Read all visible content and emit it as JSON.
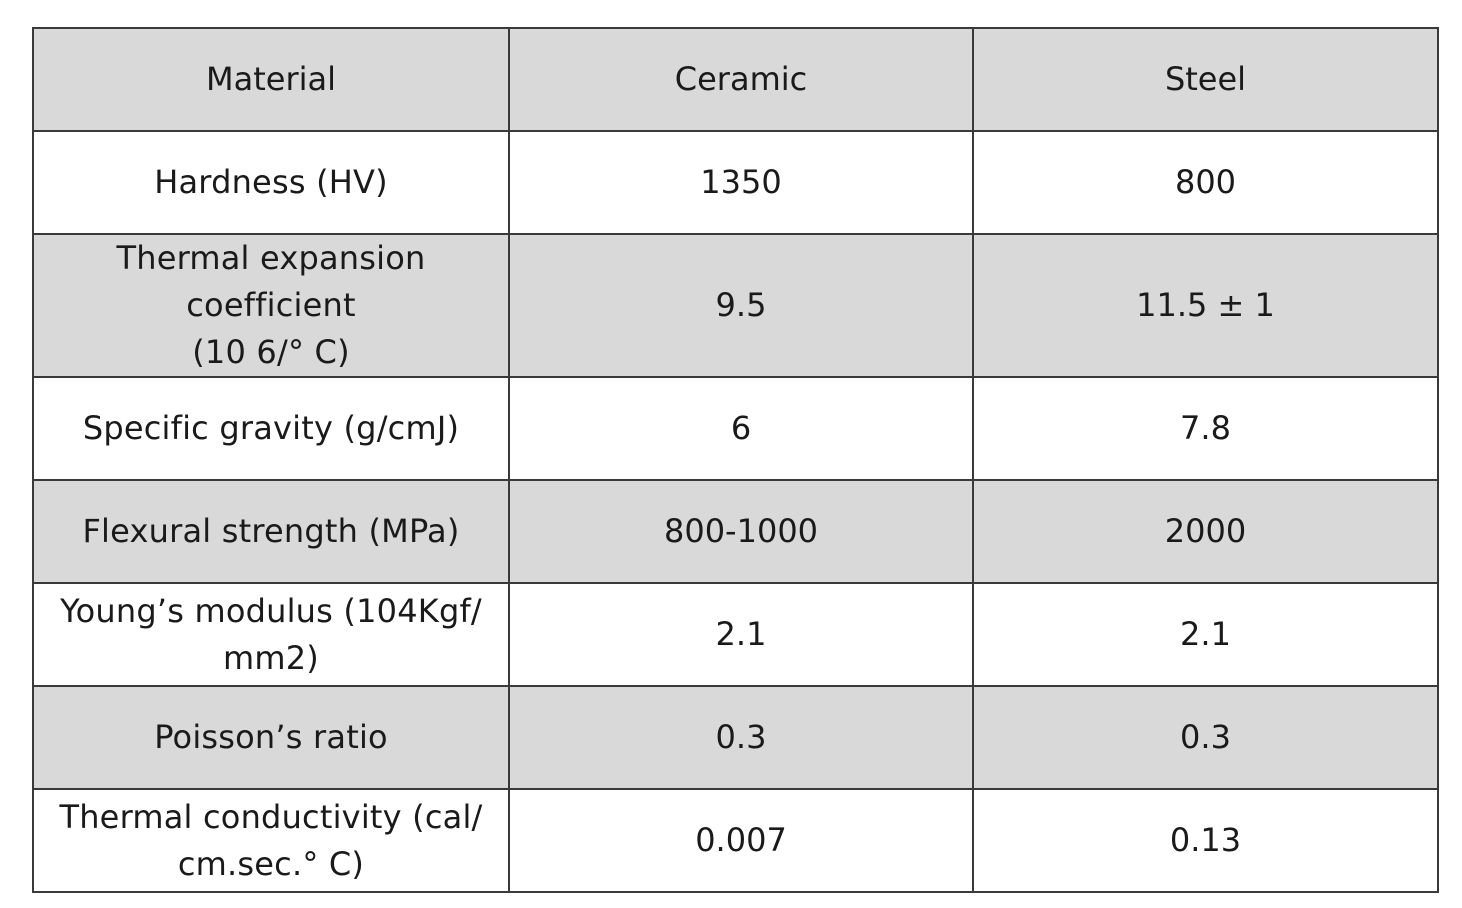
{
  "table": {
    "headers": [
      "Material",
      "Ceramic",
      "Steel"
    ],
    "rows": [
      {
        "property": [
          "Hardness (HV)"
        ],
        "ceramic": "1350",
        "steel": "800"
      },
      {
        "property": [
          "Thermal expansion coefficient",
          "(10 6/°  C)"
        ],
        "ceramic": "9.5",
        "steel": "11.5 ± 1"
      },
      {
        "property": [
          "Specific gravity (g/cmJ)"
        ],
        "ceramic": "6",
        "steel": "7.8"
      },
      {
        "property": [
          "Flexural strength (MPa)"
        ],
        "ceramic": "800-1000",
        "steel": "2000"
      },
      {
        "property": [
          "Young’s modulus (104Kgf/",
          "mm2)"
        ],
        "ceramic": "2.1",
        "steel": "2.1"
      },
      {
        "property": [
          "Poisson’s ratio"
        ],
        "ceramic": "0.3",
        "steel": "0.3"
      },
      {
        "property": [
          "Thermal conductivity (cal/",
          "cm.sec.°  C)"
        ],
        "ceramic": "0.007",
        "steel": "0.13"
      }
    ]
  },
  "colors": {
    "shaded_row": "#d9d9d9",
    "white_row": "#ffffff",
    "border": "#3a3a3a"
  }
}
